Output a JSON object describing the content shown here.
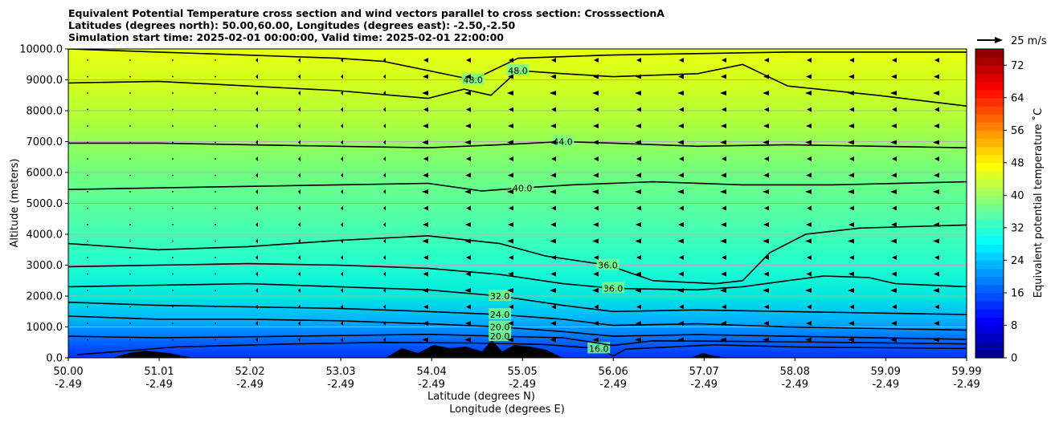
{
  "title_lines": [
    "Equivalent Potential Temperature cross section and wind vectors parallel to cross section: CrosssectionA",
    "Latitudes (degrees north): 50.00,60.00, Longitudes (degrees east): -2.50,-2.50",
    "Simulation start time: 2025-02-01 00:00:00, Valid time: 2025-02-01 22:00:00"
  ],
  "ylabel": "Altitude (meters)",
  "xlabel": "Latitude (degrees N)",
  "xlabel2": "Longitude (degrees E)",
  "colorbar_label": "Equivalent potential temperature ˚C",
  "quiver_key": "25 m/s",
  "chart_data": {
    "type": "heatmap",
    "ylim": [
      0,
      10000
    ],
    "yticks": [
      {
        "value": 0,
        "label": "0.0"
      },
      {
        "value": 1000,
        "label": "1000.0"
      },
      {
        "value": 2000,
        "label": "2000.0"
      },
      {
        "value": 3000,
        "label": "3000.0"
      },
      {
        "value": 4000,
        "label": "4000.0"
      },
      {
        "value": 5000,
        "label": "5000.0"
      },
      {
        "value": 6000,
        "label": "6000.0"
      },
      {
        "value": 7000,
        "label": "7000.0"
      },
      {
        "value": 8000,
        "label": "8000.0"
      },
      {
        "value": 9000,
        "label": "9000.0"
      },
      {
        "value": 10000,
        "label": "10000.0"
      }
    ],
    "xlim": [
      50.0,
      59.99
    ],
    "xticks": [
      {
        "lat": 50.0,
        "label": "50.00",
        "lon": "-2.49"
      },
      {
        "lat": 51.01,
        "label": "51.01",
        "lon": "-2.49"
      },
      {
        "lat": 52.02,
        "label": "52.02",
        "lon": "-2.49"
      },
      {
        "lat": 53.03,
        "label": "53.03",
        "lon": "-2.49"
      },
      {
        "lat": 54.04,
        "label": "54.04",
        "lon": "-2.49"
      },
      {
        "lat": 55.05,
        "label": "55.05",
        "lon": "-2.49"
      },
      {
        "lat": 56.06,
        "label": "56.06",
        "lon": "-2.49"
      },
      {
        "lat": 57.07,
        "label": "57.07",
        "lon": "-2.49"
      },
      {
        "lat": 58.08,
        "label": "58.08",
        "lon": "-2.49"
      },
      {
        "lat": 59.09,
        "label": "59.09",
        "lon": "-2.49"
      },
      {
        "lat": 59.99,
        "label": "59.99",
        "lon": "-2.49"
      }
    ],
    "colorbar": {
      "min": 0,
      "max": 76,
      "step": 2,
      "ticks": [
        0,
        8,
        16,
        24,
        32,
        40,
        48,
        56,
        64,
        72
      ]
    },
    "isentropes": [
      {
        "label": "16.0",
        "points": [
          [
            50.1,
            100
          ],
          [
            51.2,
            350
          ],
          [
            52.5,
            450
          ],
          [
            53.5,
            500
          ],
          [
            54.5,
            480
          ],
          [
            55.3,
            430
          ],
          [
            55.9,
            300
          ],
          [
            56.06,
            60
          ],
          [
            56.2,
            280
          ],
          [
            57.2,
            420
          ],
          [
            58.08,
            350
          ],
          [
            59.99,
            300
          ]
        ]
      },
      {
        "label": "20.0",
        "points": [
          [
            50.0,
            700
          ],
          [
            51.0,
            650
          ],
          [
            52.0,
            680
          ],
          [
            53.0,
            720
          ],
          [
            54.0,
            760
          ],
          [
            54.8,
            700
          ],
          [
            55.5,
            650
          ],
          [
            56.06,
            400
          ],
          [
            56.5,
            550
          ],
          [
            58.0,
            520
          ],
          [
            59.99,
            450
          ]
        ]
      },
      {
        "label": "20.0",
        "points": [
          [
            50.0,
            1350
          ],
          [
            51.0,
            1250
          ],
          [
            52.0,
            1250
          ],
          [
            53.0,
            1200
          ],
          [
            54.0,
            1100
          ],
          [
            54.8,
            1000
          ],
          [
            55.5,
            850
          ],
          [
            56.06,
            700
          ],
          [
            57.0,
            750
          ],
          [
            58.0,
            700
          ],
          [
            59.99,
            600
          ]
        ]
      },
      {
        "label": "24.0",
        "points": [
          [
            50.0,
            1800
          ],
          [
            51.0,
            1700
          ],
          [
            52.0,
            1650
          ],
          [
            53.0,
            1600
          ],
          [
            54.0,
            1500
          ],
          [
            54.8,
            1400
          ],
          [
            55.5,
            1250
          ],
          [
            56.06,
            1050
          ],
          [
            57.0,
            1100
          ],
          [
            58.0,
            1000
          ],
          [
            59.99,
            900
          ]
        ]
      },
      {
        "label": "32.0",
        "points": [
          [
            50.0,
            2300
          ],
          [
            51.0,
            2350
          ],
          [
            52.0,
            2400
          ],
          [
            53.0,
            2300
          ],
          [
            54.0,
            2200
          ],
          [
            54.8,
            2000
          ],
          [
            55.5,
            1700
          ],
          [
            56.06,
            1500
          ],
          [
            57.0,
            1550
          ],
          [
            58.0,
            1500
          ],
          [
            59.99,
            1400
          ]
        ]
      },
      {
        "label": "36.0",
        "points": [
          [
            50.0,
            2950
          ],
          [
            51.0,
            3000
          ],
          [
            52.0,
            3050
          ],
          [
            53.0,
            3000
          ],
          [
            54.0,
            2900
          ],
          [
            54.8,
            2700
          ],
          [
            55.5,
            2400
          ],
          [
            56.06,
            2250
          ],
          [
            57.0,
            2200
          ],
          [
            57.5,
            2300
          ],
          [
            58.0,
            2500
          ],
          [
            58.4,
            2650
          ],
          [
            58.9,
            2600
          ],
          [
            59.2,
            2400
          ],
          [
            59.99,
            2300
          ]
        ]
      },
      {
        "label": "36.0",
        "points": [
          [
            50.0,
            3700
          ],
          [
            51.0,
            3500
          ],
          [
            52.0,
            3600
          ],
          [
            53.0,
            3800
          ],
          [
            54.0,
            3950
          ],
          [
            54.8,
            3700
          ],
          [
            55.3,
            3300
          ],
          [
            56.0,
            3000
          ],
          [
            56.5,
            2500
          ],
          [
            57.2,
            2400
          ],
          [
            57.5,
            2500
          ],
          [
            57.8,
            3400
          ],
          [
            58.2,
            4000
          ],
          [
            58.8,
            4200
          ],
          [
            59.99,
            4300
          ]
        ]
      },
      {
        "label": "40.0",
        "points": [
          [
            50.0,
            5450
          ],
          [
            51.0,
            5500
          ],
          [
            52.0,
            5550
          ],
          [
            53.0,
            5600
          ],
          [
            54.0,
            5650
          ],
          [
            54.6,
            5400
          ],
          [
            55.05,
            5500
          ],
          [
            55.6,
            5600
          ],
          [
            56.5,
            5700
          ],
          [
            57.5,
            5600
          ],
          [
            58.5,
            5600
          ],
          [
            59.99,
            5700
          ]
        ]
      },
      {
        "label": "44.0",
        "points": [
          [
            50.0,
            6950
          ],
          [
            51.0,
            6950
          ],
          [
            52.0,
            6900
          ],
          [
            53.0,
            6850
          ],
          [
            54.0,
            6800
          ],
          [
            54.8,
            6900
          ],
          [
            55.5,
            7000
          ],
          [
            56.06,
            6950
          ],
          [
            57.0,
            6850
          ],
          [
            58.0,
            6900
          ],
          [
            59.0,
            6850
          ],
          [
            59.99,
            6800
          ]
        ]
      },
      {
        "label": "48.0",
        "points": [
          [
            50.0,
            8900
          ],
          [
            51.0,
            8950
          ],
          [
            52.0,
            8800
          ],
          [
            53.0,
            8650
          ],
          [
            54.0,
            8400
          ],
          [
            54.4,
            8700
          ],
          [
            54.7,
            8500
          ],
          [
            55.0,
            9300
          ],
          [
            55.5,
            9200
          ],
          [
            56.06,
            9100
          ],
          [
            57.0,
            9200
          ],
          [
            57.5,
            9500
          ],
          [
            58.0,
            8800
          ],
          [
            59.0,
            8500
          ],
          [
            59.99,
            8150
          ]
        ]
      },
      {
        "label": "48.0",
        "points": [
          [
            50.0,
            10000
          ],
          [
            51.0,
            9900
          ],
          [
            52.0,
            9800
          ],
          [
            53.0,
            9700
          ],
          [
            53.5,
            9600
          ],
          [
            54.0,
            9300
          ],
          [
            54.5,
            9000
          ],
          [
            55.0,
            9700
          ],
          [
            56.0,
            9800
          ],
          [
            57.0,
            9850
          ],
          [
            58.0,
            9900
          ],
          [
            59.99,
            9900
          ]
        ]
      }
    ]
  }
}
